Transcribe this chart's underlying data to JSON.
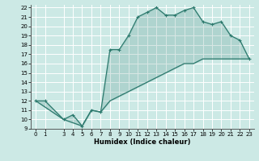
{
  "background_color": "#cce9e5",
  "grid_color": "#ffffff",
  "line_color": "#2d7a6e",
  "xlabel": "Humidex (Indice chaleur)",
  "xlim": [
    -0.5,
    23.5
  ],
  "ylim": [
    9,
    22.3
  ],
  "xticks": [
    0,
    1,
    3,
    4,
    5,
    6,
    7,
    8,
    9,
    10,
    11,
    12,
    13,
    14,
    15,
    16,
    17,
    18,
    19,
    20,
    21,
    22,
    23
  ],
  "yticks": [
    9,
    10,
    11,
    12,
    13,
    14,
    15,
    16,
    17,
    18,
    19,
    20,
    21,
    22
  ],
  "series1_x": [
    0,
    1,
    3,
    4,
    5,
    6,
    7,
    8,
    9,
    10,
    11,
    12,
    13,
    14,
    15,
    16,
    17,
    18,
    19,
    20,
    21,
    22,
    23
  ],
  "series1_y": [
    12,
    12,
    10,
    10.5,
    9.3,
    11,
    10.8,
    17.5,
    17.5,
    19,
    21,
    21.5,
    22,
    21.2,
    21.2,
    21.7,
    22,
    20.5,
    20.2,
    20.5,
    19,
    18.5,
    16.5
  ],
  "series2_x": [
    0,
    3,
    5,
    6,
    7,
    8,
    9,
    10,
    11,
    12,
    13,
    14,
    15,
    16,
    17,
    18,
    19,
    20,
    21,
    22,
    23
  ],
  "series2_y": [
    12,
    10,
    9.3,
    11,
    10.8,
    12,
    12.5,
    13,
    13.5,
    14,
    14.5,
    15,
    15.5,
    16,
    16,
    16.5,
    16.5,
    16.5,
    16.5,
    16.5,
    16.5
  ]
}
